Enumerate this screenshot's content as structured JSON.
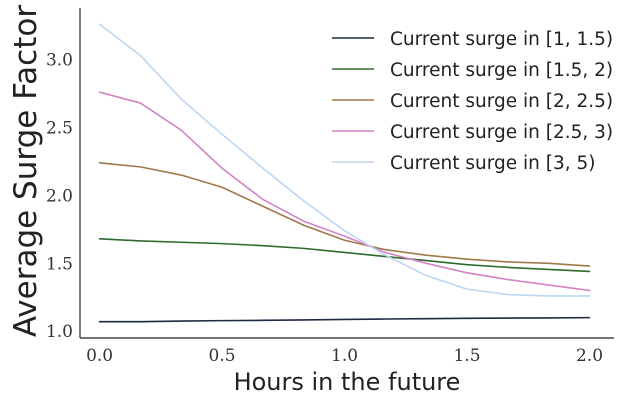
{
  "chart_data": {
    "type": "line",
    "title": "",
    "xlabel": "Hours in the future",
    "ylabel": "Average Surge Factor",
    "xlim": [
      -0.08,
      2.1
    ],
    "ylim": [
      0.95,
      3.38
    ],
    "xticks": [
      0.0,
      0.5,
      1.0,
      1.5,
      2.0
    ],
    "xtick_labels": [
      "0.0",
      "0.5",
      "1.0",
      "1.5",
      "2.0"
    ],
    "yticks": [
      1.0,
      1.5,
      2.0,
      2.5,
      3.0
    ],
    "ytick_labels": [
      "1.0",
      "1.5",
      "2.0",
      "2.5",
      "3.0"
    ],
    "grid": false,
    "legend_position": "top-right",
    "x": [
      0.0,
      0.1667,
      0.3333,
      0.5,
      0.6667,
      0.8333,
      1.0,
      1.1667,
      1.3333,
      1.5,
      1.6667,
      1.8333,
      2.0
    ],
    "series": [
      {
        "name": "Current surge in [1, 1.5)",
        "color": "#1f2a44",
        "values": [
          1.07,
          1.07,
          1.075,
          1.078,
          1.08,
          1.083,
          1.087,
          1.09,
          1.092,
          1.095,
          1.097,
          1.098,
          1.1
        ]
      },
      {
        "name": "Current surge in [1.5, 2)",
        "color": "#2e6a2e",
        "values": [
          1.68,
          1.665,
          1.655,
          1.645,
          1.63,
          1.61,
          1.58,
          1.55,
          1.52,
          1.49,
          1.47,
          1.455,
          1.44
        ]
      },
      {
        "name": "Current surge in [2, 2.5)",
        "color": "#a0784a",
        "values": [
          2.24,
          2.21,
          2.15,
          2.06,
          1.92,
          1.78,
          1.67,
          1.6,
          1.56,
          1.53,
          1.51,
          1.5,
          1.48
        ]
      },
      {
        "name": "Current surge in [2.5, 3)",
        "color": "#d484c4",
        "values": [
          2.76,
          2.68,
          2.48,
          2.2,
          1.97,
          1.81,
          1.7,
          1.58,
          1.5,
          1.43,
          1.38,
          1.34,
          1.3
        ]
      },
      {
        "name": "Current surge in [3, 5)",
        "color": "#bcd6f2",
        "values": [
          3.26,
          3.03,
          2.71,
          2.45,
          2.2,
          1.96,
          1.74,
          1.56,
          1.41,
          1.31,
          1.27,
          1.26,
          1.26
        ]
      }
    ]
  }
}
